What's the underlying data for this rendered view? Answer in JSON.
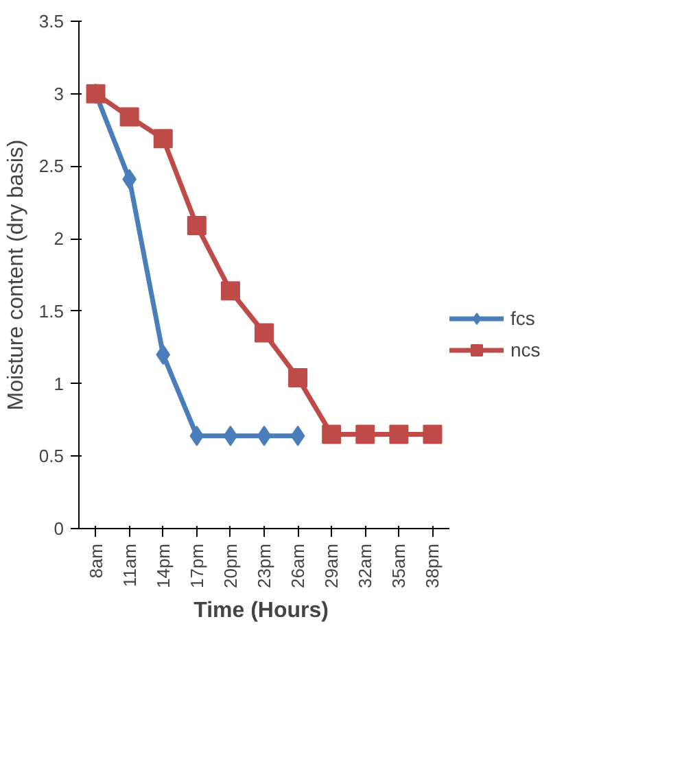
{
  "chart_data": {
    "type": "line",
    "xlabel": "Time  (Hours)",
    "ylabel": "Moisture content (dry basis)",
    "categories": [
      "8am",
      "11am",
      "14pm",
      "17pm",
      "20pm",
      "23pm",
      "26am",
      "29am",
      "32am",
      "35am",
      "38pm"
    ],
    "ylim": [
      0,
      3.5
    ],
    "yticks": [
      0,
      0.5,
      1,
      1.5,
      2,
      2.5,
      3,
      3.5
    ],
    "grid": false,
    "legend": "right",
    "series": [
      {
        "name": "fcs",
        "color": "#4a7ebb",
        "marker": "diamond",
        "values": [
          3.0,
          2.41,
          1.2,
          0.64,
          0.64,
          0.64,
          0.64,
          null,
          null,
          null,
          null
        ]
      },
      {
        "name": "ncs",
        "color": "#be4b48",
        "marker": "square",
        "values": [
          3.0,
          2.84,
          2.69,
          2.09,
          1.64,
          1.35,
          1.04,
          0.65,
          0.65,
          0.65,
          0.65
        ]
      }
    ]
  }
}
